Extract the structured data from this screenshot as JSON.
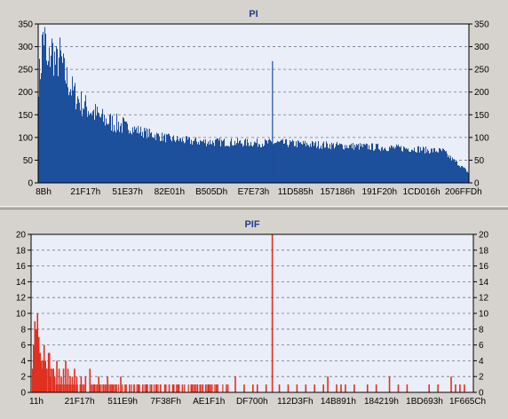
{
  "chart_data": [
    {
      "type": "area",
      "title": "PI",
      "ylim": [
        0,
        350
      ],
      "y_ticks": [
        0,
        50,
        100,
        150,
        200,
        250,
        300,
        350
      ],
      "x_tick_labels": [
        "8Bh",
        "21F17h",
        "51E37h",
        "82E01h",
        "B505Dh",
        "E7E73h",
        "11D585h",
        "157186h",
        "191F20h",
        "1CD016h",
        "206FFDh"
      ],
      "grid": true,
      "series_color": "#1c4f9c",
      "background": "#eaeef8",
      "profile": [
        [
          0,
          230
        ],
        [
          0.5,
          250
        ],
        [
          1,
          330
        ],
        [
          1.6,
          310
        ],
        [
          2,
          240
        ],
        [
          3,
          300
        ],
        [
          4,
          260
        ],
        [
          5,
          280
        ],
        [
          6,
          240
        ],
        [
          8,
          200
        ],
        [
          10,
          175
        ],
        [
          12,
          160
        ],
        [
          15,
          140
        ],
        [
          18,
          130
        ],
        [
          20,
          125
        ],
        [
          25,
          110
        ],
        [
          30,
          98
        ],
        [
          35,
          92
        ],
        [
          40,
          90
        ],
        [
          50,
          88
        ],
        [
          55,
          88
        ],
        [
          60,
          86
        ],
        [
          65,
          84
        ],
        [
          70,
          82
        ],
        [
          75,
          80
        ],
        [
          80,
          78
        ],
        [
          85,
          76
        ],
        [
          88,
          75
        ],
        [
          90,
          72
        ],
        [
          94,
          70
        ],
        [
          95,
          60
        ],
        [
          97,
          45
        ],
        [
          99,
          30
        ],
        [
          100,
          20
        ]
      ],
      "spikes": [
        {
          "x": 54.4,
          "value": 268
        }
      ]
    },
    {
      "type": "bar",
      "title": "PIF",
      "ylim": [
        0,
        20
      ],
      "y_ticks": [
        0,
        2,
        4,
        6,
        8,
        10,
        12,
        14,
        16,
        18,
        20
      ],
      "x_tick_labels": [
        "11h",
        "21F17h",
        "511E9h",
        "7F38Fh",
        "AE1F1h",
        "DF700h",
        "112D3Fh",
        "14B891h",
        "184219h",
        "1BD693h",
        "1F665Ch"
      ],
      "grid": true,
      "series_color": "#e03020",
      "background": "#eaeef8",
      "bars": [
        [
          0.2,
          6
        ],
        [
          0.5,
          9
        ],
        [
          0.8,
          8
        ],
        [
          1.1,
          10
        ],
        [
          1.4,
          7
        ],
        [
          1.7,
          5
        ],
        [
          2.0,
          4
        ],
        [
          2.3,
          3
        ],
        [
          2.6,
          6
        ],
        [
          2.9,
          4
        ],
        [
          3.2,
          3
        ],
        [
          3.6,
          5
        ],
        [
          4.0,
          2
        ],
        [
          4.5,
          3
        ],
        [
          5.0,
          2
        ],
        [
          5.5,
          4
        ],
        [
          6.0,
          3
        ],
        [
          6.5,
          2
        ],
        [
          7.0,
          3
        ],
        [
          7.5,
          4
        ],
        [
          8.0,
          3
        ],
        [
          8.5,
          2
        ],
        [
          9.0,
          2
        ],
        [
          9.5,
          3
        ],
        [
          10,
          2
        ],
        [
          11,
          2
        ],
        [
          12,
          2
        ],
        [
          13,
          3
        ],
        [
          14,
          1
        ],
        [
          15,
          2
        ],
        [
          16,
          1
        ],
        [
          17,
          2
        ],
        [
          18,
          1
        ],
        [
          19,
          1
        ],
        [
          20,
          2
        ],
        [
          21,
          1
        ],
        [
          22,
          1
        ],
        [
          23,
          1
        ],
        [
          24,
          1
        ],
        [
          25,
          1
        ],
        [
          26,
          1
        ],
        [
          27,
          1
        ],
        [
          28,
          1
        ],
        [
          29,
          1
        ],
        [
          30,
          1
        ],
        [
          31,
          1
        ],
        [
          32,
          1
        ],
        [
          33,
          1
        ],
        [
          34,
          1
        ],
        [
          36,
          1
        ],
        [
          38,
          1
        ],
        [
          40,
          1
        ],
        [
          42,
          1
        ],
        [
          44,
          1
        ],
        [
          46,
          2
        ],
        [
          48,
          1
        ],
        [
          50,
          1
        ],
        [
          51,
          1
        ],
        [
          53,
          1
        ],
        [
          54.4,
          20
        ],
        [
          56,
          1
        ],
        [
          58,
          1
        ],
        [
          60,
          1
        ],
        [
          62,
          1
        ],
        [
          64,
          1
        ],
        [
          66,
          1
        ],
        [
          67,
          2
        ],
        [
          69,
          1
        ],
        [
          70,
          1
        ],
        [
          71,
          1
        ],
        [
          73,
          1
        ],
        [
          76,
          1
        ],
        [
          78,
          1
        ],
        [
          81,
          2
        ],
        [
          83,
          1
        ],
        [
          85,
          1
        ],
        [
          90,
          1
        ],
        [
          92,
          1
        ],
        [
          95,
          2
        ],
        [
          96,
          1
        ],
        [
          97,
          1
        ],
        [
          98,
          1
        ]
      ]
    }
  ]
}
